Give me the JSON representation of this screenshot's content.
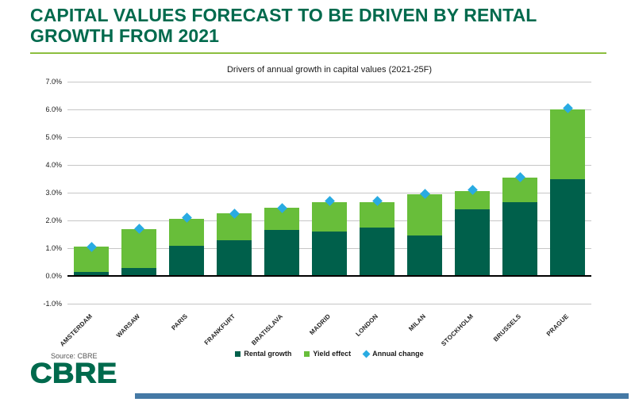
{
  "slide": {
    "title": "CAPITAL VALUES FORECAST TO BE DRIVEN BY RENTAL GROWTH FROM 2021",
    "source_note": "Source: CBRE",
    "logo_text": "CBRE"
  },
  "colors": {
    "brand_green": "#006A4D",
    "title_rule_green": "#8CBE3F",
    "rental_growth_green": "#00604B",
    "yield_effect_green": "#68BE3A",
    "annual_change_blue": "#29ABE2",
    "gridline_gray": "#C6C6C6",
    "axis_black": "#000000",
    "footer_bar_blue": "#4579A5"
  },
  "chart_data": {
    "type": "bar",
    "stacked": true,
    "title": "Drivers of annual growth in capital values (2021-25F)",
    "categories": [
      "AMSTERDAM",
      "WARSAW",
      "PARIS",
      "FRANKFURT",
      "BRATISLAVA",
      "MADRID",
      "LONDON",
      "MILAN",
      "STOCKHOLM",
      "BRUSSELS",
      "PRAGUE"
    ],
    "series": [
      {
        "name": "Rental growth",
        "values": [
          0.15,
          0.3,
          1.1,
          1.3,
          1.65,
          1.6,
          1.75,
          1.45,
          2.4,
          2.65,
          3.5
        ]
      },
      {
        "name": "Yield effect",
        "values": [
          0.9,
          1.4,
          0.95,
          0.95,
          0.8,
          1.05,
          0.9,
          1.5,
          0.65,
          0.9,
          2.5
        ]
      }
    ],
    "markers": {
      "name": "Annual change",
      "shape": "diamond",
      "values": [
        1.05,
        1.7,
        2.1,
        2.25,
        2.45,
        2.7,
        2.7,
        2.95,
        3.1,
        3.55,
        6.05
      ]
    },
    "ylim": [
      -1,
      7
    ],
    "ytick_step": 1,
    "ytick_suffix": "%",
    "grid": true,
    "legend_position": "bottom"
  }
}
